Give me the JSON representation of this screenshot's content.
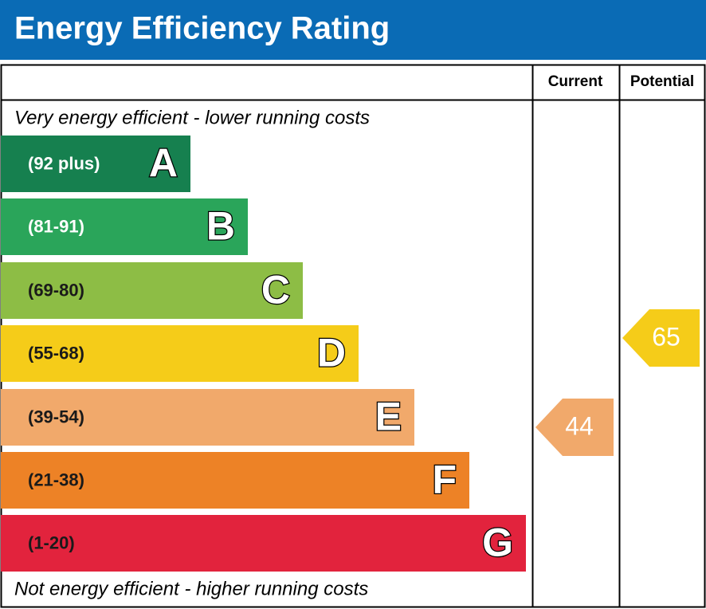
{
  "header": {
    "title": "Energy Efficiency Rating",
    "background": "#0a6bb5"
  },
  "columns": [
    "Current",
    "Potential"
  ],
  "top_note": "Very energy efficient - lower running costs",
  "bottom_note": "Not energy efficient - higher running costs",
  "bands": [
    {
      "range": "(92 plus)",
      "letter": "A",
      "color": "#16804f",
      "text_color": "#ffffff"
    },
    {
      "range": "(81-91)",
      "letter": "B",
      "color": "#2aa55a",
      "text_color": "#ffffff"
    },
    {
      "range": "(69-80)",
      "letter": "C",
      "color": "#8dbd45",
      "text_color": "#1a1a1a"
    },
    {
      "range": "(55-68)",
      "letter": "D",
      "color": "#f5cc19",
      "text_color": "#1a1a1a"
    },
    {
      "range": "(39-54)",
      "letter": "E",
      "color": "#f1a96b",
      "text_color": "#1a1a1a"
    },
    {
      "range": "(21-38)",
      "letter": "F",
      "color": "#ed8226",
      "text_color": "#1a1a1a"
    },
    {
      "range": "(1-20)",
      "letter": "G",
      "color": "#e2233d",
      "text_color": "#1a1a1a"
    }
  ],
  "current": {
    "value": "44",
    "color": "#f1a96b"
  },
  "potential": {
    "value": "65",
    "color": "#f5cc19"
  }
}
